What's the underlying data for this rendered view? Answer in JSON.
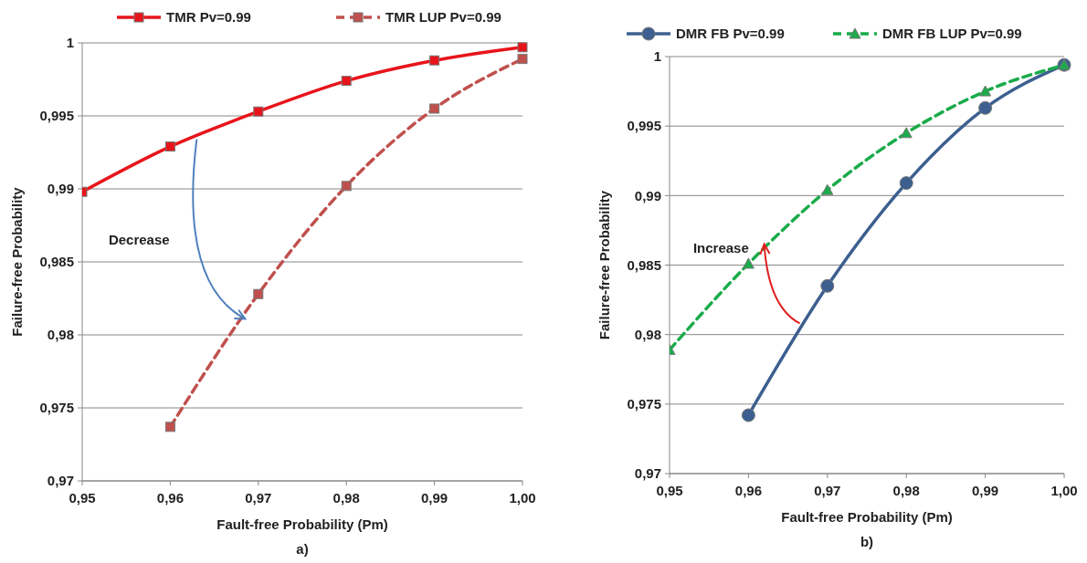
{
  "chart_data": [
    {
      "type": "line",
      "x": [
        0.95,
        0.96,
        0.97,
        0.98,
        0.99,
        1.0
      ],
      "xlabel": "Fault-free Probability (Pm)",
      "ylabel": "Failure-free Probability",
      "xlim": [
        0.95,
        1.0
      ],
      "ylim": [
        0.97,
        1.0
      ],
      "xticks": [
        {
          "value": 0.95,
          "label": "0,95"
        },
        {
          "value": 0.96,
          "label": "0,96"
        },
        {
          "value": 0.97,
          "label": "0,97"
        },
        {
          "value": 0.98,
          "label": "0,98"
        },
        {
          "value": 0.99,
          "label": "0,99"
        },
        {
          "value": 1.0,
          "label": "1,00"
        }
      ],
      "yticks": [
        {
          "value": 0.97,
          "label": "0,97"
        },
        {
          "value": 0.975,
          "label": "0,975"
        },
        {
          "value": 0.98,
          "label": "0,98"
        },
        {
          "value": 0.985,
          "label": "0,985"
        },
        {
          "value": 0.99,
          "label": "0,99"
        },
        {
          "value": 0.995,
          "label": "0,995"
        },
        1
      ],
      "series": [
        {
          "name": "TMR Pv=0.99",
          "color": "#e8141b",
          "values": [
            0.9898,
            0.9929,
            0.9953,
            0.9974,
            0.9988,
            0.9997
          ],
          "marker": "square",
          "line_style": "solid"
        },
        {
          "name": "TMR LUP Pv=0.99",
          "color": "#c0504d",
          "values": [
            null,
            0.9737,
            0.9828,
            0.9902,
            0.9955,
            0.9989
          ],
          "marker": "square",
          "line_style": "dashed"
        }
      ],
      "grid": "y",
      "legend": "top",
      "annotations": [
        "a)",
        "Decrease"
      ]
    },
    {
      "type": "line",
      "x": [
        0.95,
        0.96,
        0.97,
        0.98,
        0.99,
        1.0
      ],
      "xlabel": "Fault-free Probability (Pm)",
      "ylabel": "Failure-free Probability",
      "xlim": [
        0.95,
        1.0
      ],
      "ylim": [
        0.97,
        1.0
      ],
      "xticks": [
        {
          "value": 0.95,
          "label": "0,95"
        },
        {
          "value": 0.96,
          "label": "0,96"
        },
        {
          "value": 0.97,
          "label": "0,97"
        },
        {
          "value": 0.98,
          "label": "0,98"
        },
        {
          "value": 0.99,
          "label": "0,99"
        },
        {
          "value": 1.0,
          "label": "1,00"
        }
      ],
      "yticks": [
        {
          "value": 0.97,
          "label": "0,97"
        },
        {
          "value": 0.975,
          "label": "0,975"
        },
        {
          "value": 0.98,
          "label": "0,98"
        },
        {
          "value": 0.985,
          "label": "0,985"
        },
        {
          "value": 0.99,
          "label": "0,99"
        },
        {
          "value": 0.995,
          "label": "0,995"
        },
        1
      ],
      "series": [
        {
          "name": "DMR FB Pv=0.99",
          "color": "#3c5f8f",
          "values": [
            null,
            0.9742,
            0.9835,
            0.9909,
            0.9963,
            0.9994
          ],
          "marker": "circle",
          "line_style": "solid"
        },
        {
          "name": "DMR FB LUP Pv=0.99",
          "color": "#1aab4a",
          "values": [
            0.9789,
            0.9851,
            0.9904,
            0.9945,
            0.9975,
            0.9994
          ],
          "marker": "triangle",
          "line_style": "dashed"
        }
      ],
      "grid": "y",
      "legend": "top",
      "annotations": [
        "b)",
        {
          "text": "Increase",
          "x": 0.962,
          "y": 0.9865
        }
      ]
    }
  ]
}
